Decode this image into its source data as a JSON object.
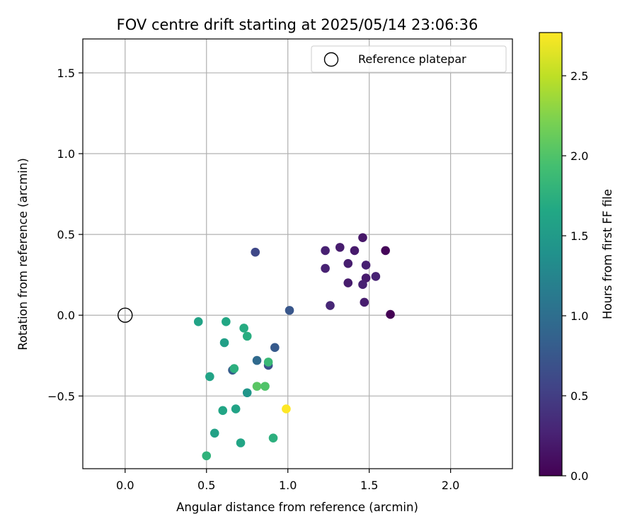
{
  "chart_data": {
    "type": "scatter",
    "title": "FOV centre drift starting at 2025/05/14 23:06:36",
    "xlabel": "Angular distance from reference (arcmin)",
    "ylabel": "Rotation from reference (arcmin)",
    "xlim": [
      -0.26,
      2.38
    ],
    "ylim": [
      -0.95,
      1.71
    ],
    "xticks": [
      0.0,
      0.5,
      1.0,
      1.5,
      2.0
    ],
    "xtick_labels": [
      "0.0",
      "0.5",
      "1.0",
      "1.5",
      "2.0"
    ],
    "yticks": [
      -0.5,
      0.0,
      0.5,
      1.0,
      1.5
    ],
    "ytick_labels": [
      "−0.5",
      "0.0",
      "0.5",
      "1.0",
      "1.5"
    ],
    "grid": true,
    "legend": {
      "placement": "top-right",
      "entries": [
        "Reference platepar"
      ]
    },
    "reference_point": {
      "x": 0.0,
      "y": 0.0,
      "label": "Reference platepar",
      "marker": "open-circle"
    },
    "colorbar": {
      "label": "Hours from first FF file",
      "colormap": "viridis",
      "range": [
        0.0,
        2.77
      ],
      "ticks": [
        0.0,
        0.5,
        1.0,
        1.5,
        2.0,
        2.5
      ],
      "tick_labels": [
        "0.0",
        "0.5",
        "1.0",
        "1.5",
        "2.0",
        "2.5"
      ]
    },
    "points": [
      {
        "x": 1.63,
        "y": 0.005,
        "hours": 0.0
      },
      {
        "x": 1.6,
        "y": 0.4,
        "hours": 0.04
      },
      {
        "x": 1.46,
        "y": 0.48,
        "hours": 0.18
      },
      {
        "x": 1.41,
        "y": 0.4,
        "hours": 0.2
      },
      {
        "x": 1.32,
        "y": 0.42,
        "hours": 0.22
      },
      {
        "x": 1.23,
        "y": 0.4,
        "hours": 0.25
      },
      {
        "x": 1.23,
        "y": 0.29,
        "hours": 0.26
      },
      {
        "x": 1.37,
        "y": 0.32,
        "hours": 0.23
      },
      {
        "x": 1.48,
        "y": 0.31,
        "hours": 0.24
      },
      {
        "x": 1.48,
        "y": 0.23,
        "hours": 0.2
      },
      {
        "x": 1.54,
        "y": 0.24,
        "hours": 0.27
      },
      {
        "x": 1.37,
        "y": 0.2,
        "hours": 0.21
      },
      {
        "x": 1.46,
        "y": 0.19,
        "hours": 0.25
      },
      {
        "x": 1.26,
        "y": 0.06,
        "hours": 0.3
      },
      {
        "x": 1.47,
        "y": 0.08,
        "hours": 0.22
      },
      {
        "x": 0.8,
        "y": 0.39,
        "hours": 0.6
      },
      {
        "x": 1.01,
        "y": 0.03,
        "hours": 0.75
      },
      {
        "x": 0.92,
        "y": -0.2,
        "hours": 0.78
      },
      {
        "x": 0.81,
        "y": -0.28,
        "hours": 0.95
      },
      {
        "x": 0.88,
        "y": -0.31,
        "hours": 0.7
      },
      {
        "x": 0.66,
        "y": -0.34,
        "hours": 0.8
      },
      {
        "x": 0.45,
        "y": -0.04,
        "hours": 1.6
      },
      {
        "x": 0.62,
        "y": -0.04,
        "hours": 1.65
      },
      {
        "x": 0.73,
        "y": -0.08,
        "hours": 1.7
      },
      {
        "x": 0.61,
        "y": -0.17,
        "hours": 1.55
      },
      {
        "x": 0.75,
        "y": -0.13,
        "hours": 1.72
      },
      {
        "x": 0.67,
        "y": -0.33,
        "hours": 1.75
      },
      {
        "x": 0.52,
        "y": -0.38,
        "hours": 1.6
      },
      {
        "x": 0.88,
        "y": -0.29,
        "hours": 1.85
      },
      {
        "x": 0.75,
        "y": -0.48,
        "hours": 1.45
      },
      {
        "x": 0.81,
        "y": -0.44,
        "hours": 2.05
      },
      {
        "x": 0.86,
        "y": -0.44,
        "hours": 2.0
      },
      {
        "x": 0.99,
        "y": -0.58,
        "hours": 2.77
      },
      {
        "x": 0.6,
        "y": -0.59,
        "hours": 1.62
      },
      {
        "x": 0.68,
        "y": -0.58,
        "hours": 1.6
      },
      {
        "x": 0.55,
        "y": -0.73,
        "hours": 1.58
      },
      {
        "x": 0.71,
        "y": -0.79,
        "hours": 1.63
      },
      {
        "x": 0.91,
        "y": -0.76,
        "hours": 1.75
      },
      {
        "x": 0.5,
        "y": -0.87,
        "hours": 1.78
      }
    ]
  }
}
